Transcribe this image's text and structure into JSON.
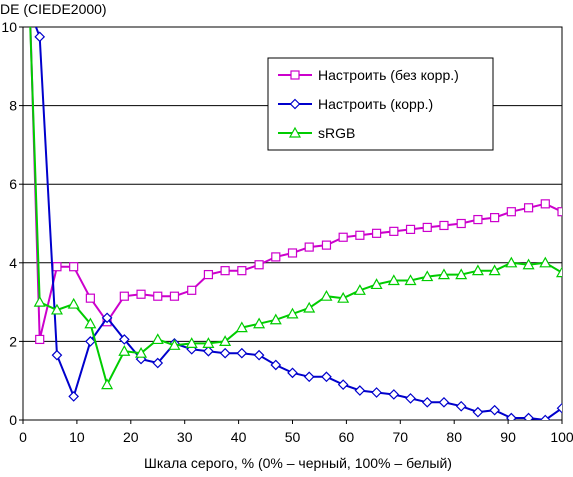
{
  "chart_data": {
    "type": "line",
    "ylabel": "DE (CIEDE2000)",
    "xlabel": "Шкала серого, % (0% – черный, 100% – белый)",
    "xlim": [
      0,
      100
    ],
    "ylim": [
      0,
      10
    ],
    "x_ticks": [
      0,
      10,
      20,
      30,
      40,
      50,
      60,
      70,
      80,
      90,
      100
    ],
    "y_ticks": [
      0,
      2,
      4,
      6,
      8,
      10
    ],
    "grid": "horizontal",
    "legend_position": "top-right",
    "x": [
      1.3,
      3.1,
      6.3,
      9.4,
      12.5,
      15.6,
      18.8,
      21.9,
      25.0,
      28.1,
      31.3,
      34.4,
      37.5,
      40.6,
      43.8,
      46.9,
      50.0,
      53.1,
      56.3,
      59.4,
      62.5,
      65.6,
      68.8,
      71.9,
      75.0,
      78.1,
      81.3,
      84.4,
      87.5,
      90.6,
      93.8,
      96.9,
      100.0
    ],
    "series": [
      {
        "name": "Настроить (без корр.)",
        "color": "#cc00cc",
        "marker": "square",
        "values": [
          10.4,
          2.05,
          3.9,
          3.9,
          3.1,
          2.5,
          3.15,
          3.2,
          3.15,
          3.15,
          3.3,
          3.7,
          3.8,
          3.8,
          3.95,
          4.15,
          4.25,
          4.4,
          4.45,
          4.65,
          4.7,
          4.75,
          4.8,
          4.85,
          4.9,
          4.95,
          5.0,
          5.1,
          5.15,
          5.3,
          5.4,
          5.5,
          5.3
        ]
      },
      {
        "name": "Настроить (корр.)",
        "color": "#0000cc",
        "marker": "diamond",
        "values": [
          10.4,
          9.75,
          1.65,
          0.6,
          2.0,
          2.6,
          2.05,
          1.55,
          1.45,
          1.95,
          1.8,
          1.75,
          1.7,
          1.7,
          1.65,
          1.4,
          1.2,
          1.1,
          1.1,
          0.9,
          0.75,
          0.7,
          0.65,
          0.55,
          0.45,
          0.45,
          0.35,
          0.2,
          0.25,
          0.05,
          0.05,
          0.0,
          0.3
        ]
      },
      {
        "name": "sRGB",
        "color": "#00cc00",
        "marker": "triangle",
        "values": [
          10.2,
          3.0,
          2.8,
          2.95,
          2.45,
          0.9,
          1.75,
          1.7,
          2.05,
          1.9,
          1.95,
          1.95,
          2.0,
          2.35,
          2.45,
          2.55,
          2.7,
          2.85,
          3.15,
          3.1,
          3.3,
          3.45,
          3.55,
          3.55,
          3.65,
          3.7,
          3.7,
          3.8,
          3.8,
          4.0,
          3.95,
          4.0,
          3.75
        ]
      }
    ]
  }
}
